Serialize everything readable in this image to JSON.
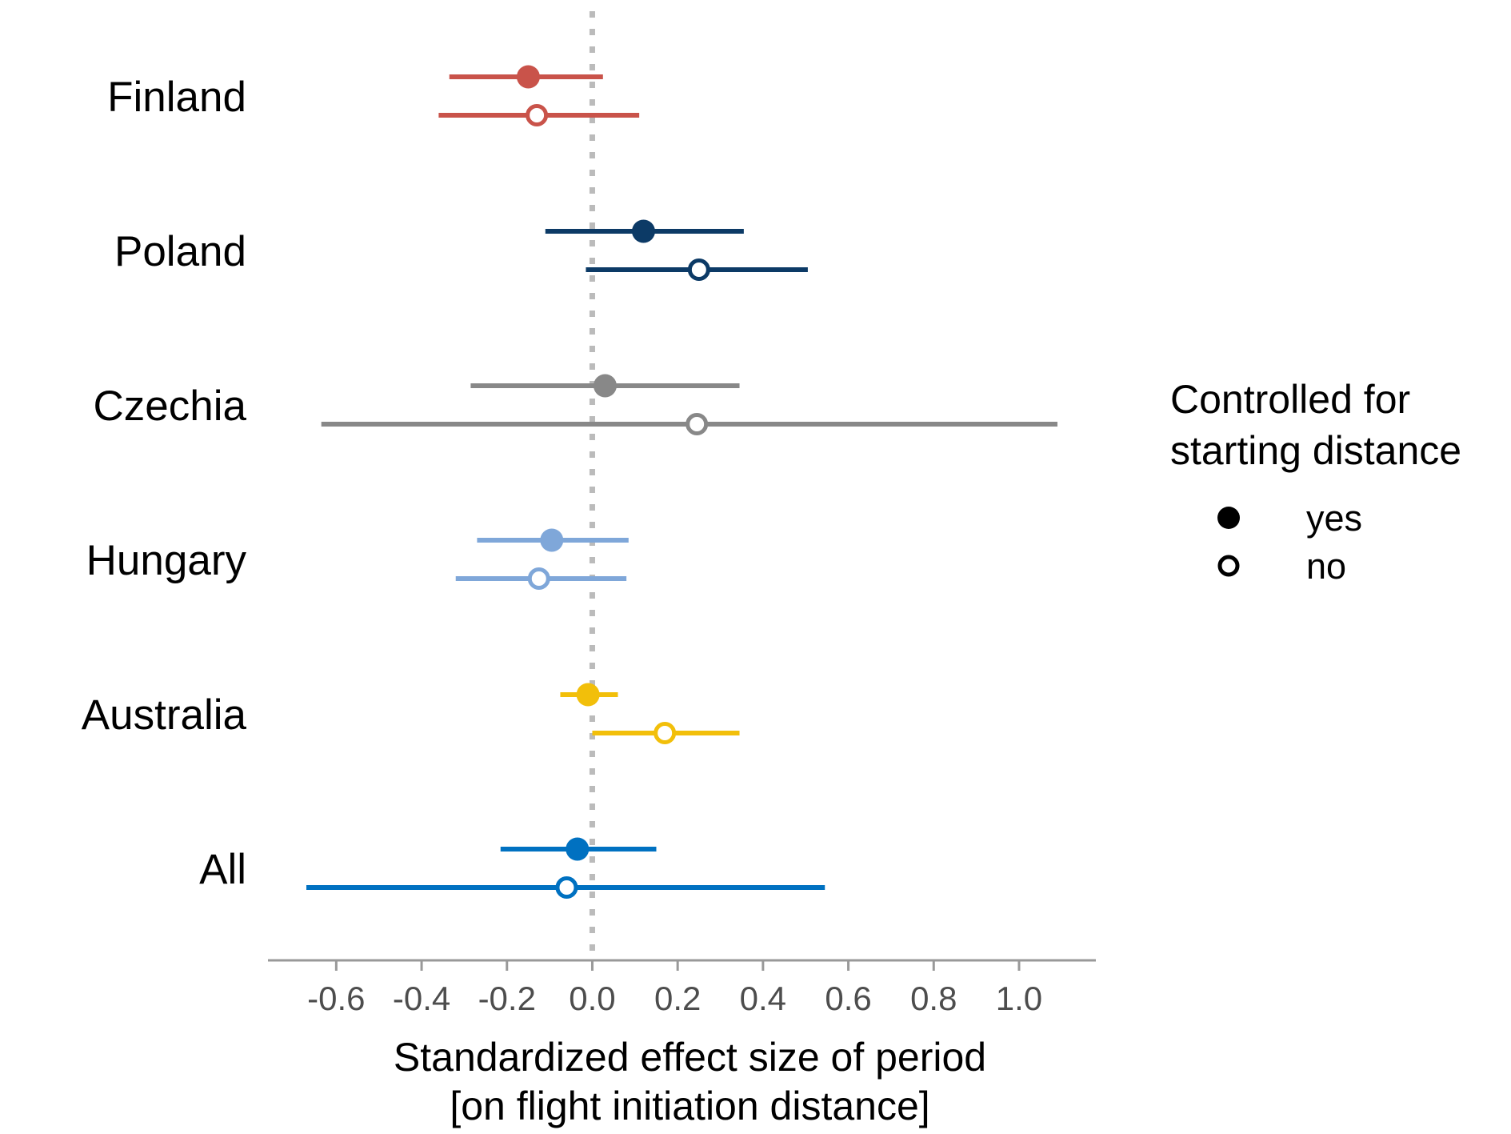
{
  "chart_data": {
    "type": "scatter",
    "subtype": "forest-plot",
    "categories": [
      "Finland",
      "Poland",
      "Czechia",
      "Hungary",
      "Australia",
      "All"
    ],
    "colors": {
      "Finland": "#c9534a",
      "Poland": "#0c3a66",
      "Czechia": "#888888",
      "Hungary": "#7fa7d9",
      "Australia": "#f2bf0a",
      "All": "#0071c1"
    },
    "series": [
      {
        "name": "yes",
        "marker": "filled",
        "estimates": [
          -0.15,
          0.12,
          0.03,
          -0.095,
          -0.01,
          -0.035
        ],
        "lower": [
          -0.335,
          -0.11,
          -0.285,
          -0.27,
          -0.075,
          -0.215
        ],
        "upper": [
          0.025,
          0.355,
          0.345,
          0.085,
          0.06,
          0.15
        ]
      },
      {
        "name": "no",
        "marker": "hollow",
        "estimates": [
          -0.13,
          0.25,
          0.245,
          -0.125,
          0.17,
          -0.06
        ],
        "lower": [
          -0.36,
          -0.015,
          -0.635,
          -0.32,
          0.0,
          -0.67
        ],
        "upper": [
          0.11,
          0.505,
          1.09,
          0.08,
          0.345,
          0.545
        ]
      }
    ],
    "xticks": [
      "-0.6",
      "-0.4",
      "-0.2",
      "0.0",
      "0.2",
      "0.4",
      "0.6",
      "0.8",
      "1.0"
    ],
    "xlim": [
      -0.76,
      1.18
    ],
    "reference_line": 0,
    "xlabel_line1": "Standardized effect size of period",
    "xlabel_line2": "[on flight initiation distance]",
    "legend": {
      "title_line1": "Controlled for",
      "title_line2": "starting distance",
      "position": "right",
      "entries": [
        "yes",
        "no"
      ]
    },
    "grid": false
  }
}
